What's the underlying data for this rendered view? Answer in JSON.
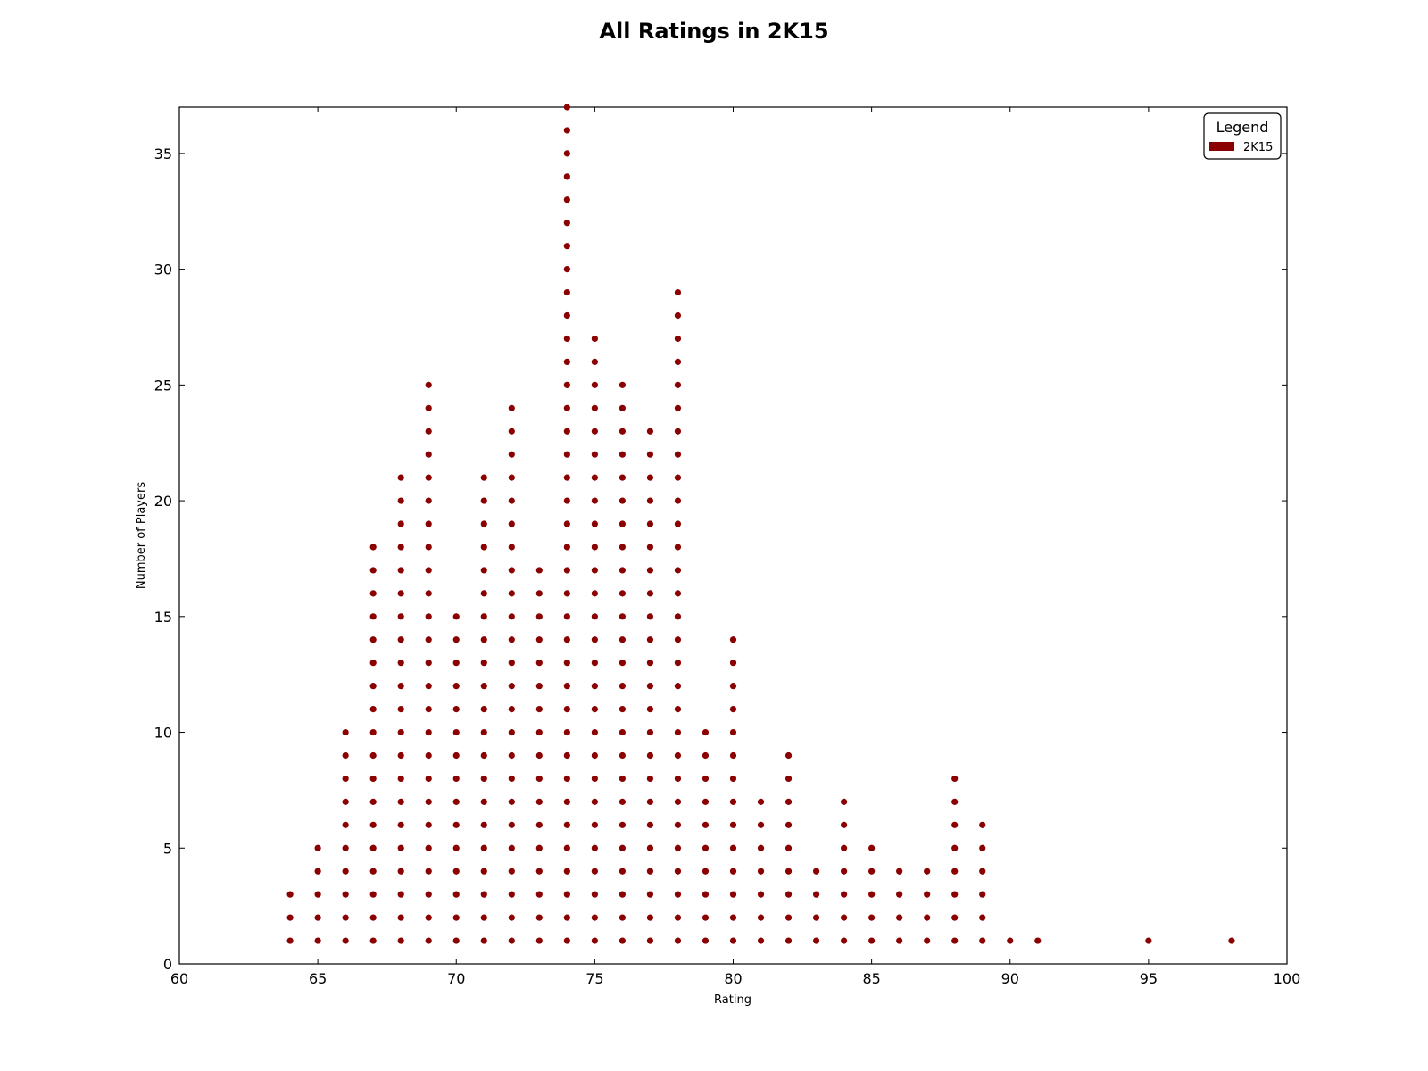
{
  "chart_data": {
    "type": "scatter",
    "title": "All Ratings in 2K15",
    "xlabel": "Rating",
    "ylabel": "Number of Players",
    "xlim": [
      60,
      100
    ],
    "ylim": [
      0,
      37
    ],
    "xticks": [
      60,
      65,
      70,
      75,
      80,
      85,
      90,
      95,
      100
    ],
    "yticks": [
      0,
      5,
      10,
      15,
      20,
      25,
      30,
      35
    ],
    "grid": false,
    "legend": {
      "title": "Legend",
      "placement": "top-right",
      "entries": [
        "2K15"
      ]
    },
    "series": [
      {
        "name": "2K15",
        "color": "#8b0000",
        "description": "Each rating column is stacked with one dot per player from 1 up to the count.",
        "ratings": [
          64,
          65,
          66,
          67,
          68,
          69,
          70,
          71,
          72,
          73,
          74,
          75,
          76,
          77,
          78,
          79,
          80,
          81,
          82,
          83,
          84,
          85,
          86,
          87,
          88,
          89,
          90,
          91,
          95,
          98
        ],
        "counts": [
          3,
          5,
          10,
          18,
          21,
          25,
          15,
          21,
          24,
          17,
          37,
          27,
          25,
          23,
          29,
          10,
          14,
          7,
          9,
          4,
          7,
          5,
          4,
          4,
          8,
          6,
          1,
          1,
          1,
          1
        ]
      }
    ]
  }
}
